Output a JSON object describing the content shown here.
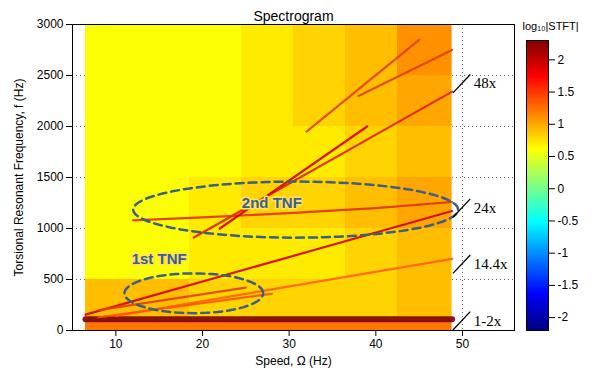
{
  "chart_data": {
    "type": "heatmap",
    "title": "Spectrogram",
    "x_label": "Speed, Ω (Hz)",
    "y_label": "Torsional Resonant Frequency, f (Hz)",
    "xlim": [
      5,
      56
    ],
    "xticks": [
      10,
      20,
      30,
      40,
      50
    ],
    "ylim": [
      0,
      3000
    ],
    "yticks": [
      0,
      500,
      1000,
      1500,
      2000,
      2500,
      3000
    ],
    "grid": true,
    "cells": {
      "x": [
        6.5,
        12.5,
        18.5,
        24.5,
        30.5,
        36.5,
        42.5,
        48.8
      ],
      "y": [
        0,
        100,
        500,
        1000,
        1500,
        2000,
        2500,
        3000
      ],
      "values": [
        [
          1.2,
          1.2,
          1.2,
          1.2,
          1.2,
          1.2,
          1.2
        ],
        [
          0.9,
          0.9,
          0.8,
          0.8,
          0.8,
          0.8,
          0.9
        ],
        [
          0.6,
          0.6,
          0.7,
          0.7,
          0.7,
          0.8,
          0.9
        ],
        [
          0.6,
          0.6,
          0.7,
          0.8,
          0.8,
          0.9,
          1.0
        ],
        [
          0.6,
          0.6,
          0.6,
          0.7,
          0.7,
          0.8,
          0.9
        ],
        [
          0.6,
          0.6,
          0.6,
          0.7,
          0.8,
          0.9,
          1.0
        ],
        [
          0.6,
          0.6,
          0.6,
          0.7,
          0.8,
          0.9,
          1.1
        ]
      ]
    },
    "colorbar": {
      "label": "log₁₀|STFT|",
      "range": [
        -2.2,
        2.3
      ],
      "ticks": [
        -2,
        -1.5,
        -1,
        -0.5,
        0,
        0.5,
        1,
        1.5,
        2
      ]
    },
    "series": [
      {
        "color": "#7f0000",
        "line_style": "thick",
        "x": [
          6.5,
          48.8
        ],
        "values": [
          110,
          110
        ]
      },
      {
        "color": "#d00000",
        "line_style": "solid",
        "x": [
          6.5,
          48.8
        ],
        "values": [
          156,
          1171
        ]
      },
      {
        "color": "#ff6000",
        "line_style": "solid",
        "x": [
          10,
          48.8
        ],
        "values": [
          144,
          703
        ]
      },
      {
        "color": "#e02000",
        "line_style": "solid",
        "x": [
          19,
          48.8
        ],
        "values": [
          912,
          2342
        ]
      },
      {
        "color": "#e03000",
        "line_style": "solid",
        "x": [
          12,
          20,
          30,
          40,
          48.8
        ],
        "values": [
          1080,
          1110,
          1150,
          1200,
          1260
        ]
      },
      {
        "color": "#d00000",
        "line_style": "solid",
        "x": [
          22,
          39
        ],
        "values": [
          1000,
          2000
        ]
      },
      {
        "color": "#e04000",
        "line_style": "solid",
        "x": [
          32,
          45
        ],
        "values": [
          1950,
          2850
        ]
      },
      {
        "color": "#e04000",
        "line_style": "solid",
        "x": [
          38,
          48.8
        ],
        "values": [
          2300,
          2750
        ]
      },
      {
        "color": "#e04000",
        "line_style": "solid",
        "x": [
          8,
          25
        ],
        "values": [
          200,
          420
        ]
      },
      {
        "color": "#ff5000",
        "line_style": "solid",
        "x": [
          8,
          28
        ],
        "values": [
          130,
          360
        ]
      }
    ],
    "annotations": [
      {
        "text": "2nd TNF",
        "x": 28,
        "y": 1250,
        "region": {
          "x": [
            12,
            49.5
          ],
          "y": [
            910,
            1460
          ]
        }
      },
      {
        "text": "1st TNF",
        "x": 15,
        "y": 700,
        "region": {
          "x": [
            11,
            27
          ],
          "y": [
            170,
            560
          ]
        }
      },
      {
        "text": "48x",
        "x": 51.3,
        "y": 2420
      },
      {
        "text": "24x",
        "x": 51.3,
        "y": 1200
      },
      {
        "text": "14.4x",
        "x": 51.3,
        "y": 650
      },
      {
        "text": "1-2x",
        "x": 51.3,
        "y": 95
      }
    ]
  }
}
